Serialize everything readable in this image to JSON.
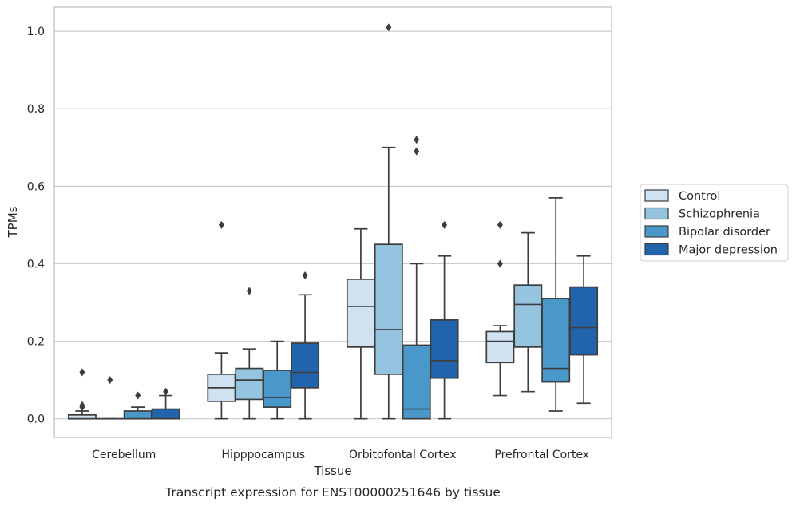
{
  "chart_data": {
    "type": "box",
    "xlabel": "Tissue",
    "ylabel": "TPMs",
    "caption": "Transcript expression for ENST00000251646 by tissue",
    "ylim": [
      -0.048,
      1.062
    ],
    "yticks": [
      0.0,
      0.2,
      0.4,
      0.6,
      0.8,
      1.0
    ],
    "ytick_labels": [
      "0.0",
      "0.2",
      "0.4",
      "0.6",
      "0.8",
      "1.0"
    ],
    "grid": true,
    "legend_position": "right",
    "categories": [
      "Cerebellum",
      "Hipppocampus",
      "Orbitofontal Cortex",
      "Prefrontal Cortex"
    ],
    "series": [
      {
        "name": "Control",
        "color": "#d0e1f2",
        "boxes": [
          {
            "whislo": 0.0,
            "q1": 0.0,
            "med": 0.0,
            "q3": 0.01,
            "whishi": 0.02,
            "fliers": [
              0.03,
              0.12,
              0.035
            ]
          },
          {
            "whislo": 0.0,
            "q1": 0.045,
            "med": 0.08,
            "q3": 0.115,
            "whishi": 0.17,
            "fliers": [
              0.5
            ]
          },
          {
            "whislo": 0.0,
            "q1": 0.185,
            "med": 0.29,
            "q3": 0.36,
            "whishi": 0.49,
            "fliers": []
          },
          {
            "whislo": 0.06,
            "q1": 0.145,
            "med": 0.2,
            "q3": 0.225,
            "whishi": 0.24,
            "fliers": [
              0.4,
              0.5
            ]
          }
        ]
      },
      {
        "name": "Schizophrenia",
        "color": "#94c4df",
        "boxes": [
          {
            "whislo": 0.0,
            "q1": 0.0,
            "med": 0.0,
            "q3": 0.0,
            "whishi": 0.0,
            "fliers": [
              0.1
            ]
          },
          {
            "whislo": 0.0,
            "q1": 0.05,
            "med": 0.1,
            "q3": 0.13,
            "whishi": 0.18,
            "fliers": [
              0.33
            ]
          },
          {
            "whislo": 0.0,
            "q1": 0.115,
            "med": 0.23,
            "q3": 0.45,
            "whishi": 0.7,
            "fliers": [
              1.01
            ]
          },
          {
            "whislo": 0.07,
            "q1": 0.185,
            "med": 0.295,
            "q3": 0.345,
            "whishi": 0.48,
            "fliers": []
          }
        ]
      },
      {
        "name": "Bipolar disorder",
        "color": "#4a98c9",
        "boxes": [
          {
            "whislo": 0.0,
            "q1": 0.0,
            "med": 0.0,
            "q3": 0.02,
            "whishi": 0.03,
            "fliers": [
              0.06
            ]
          },
          {
            "whislo": 0.0,
            "q1": 0.03,
            "med": 0.055,
            "q3": 0.125,
            "whishi": 0.2,
            "fliers": []
          },
          {
            "whislo": 0.0,
            "q1": 0.0,
            "med": 0.025,
            "q3": 0.19,
            "whishi": 0.4,
            "fliers": [
              0.69,
              0.72
            ]
          },
          {
            "whislo": 0.02,
            "q1": 0.095,
            "med": 0.13,
            "q3": 0.31,
            "whishi": 0.57,
            "fliers": []
          }
        ]
      },
      {
        "name": "Major depression",
        "color": "#2164ab",
        "boxes": [
          {
            "whislo": 0.0,
            "q1": 0.0,
            "med": 0.0,
            "q3": 0.025,
            "whishi": 0.06,
            "fliers": [
              0.07
            ]
          },
          {
            "whislo": 0.0,
            "q1": 0.08,
            "med": 0.12,
            "q3": 0.195,
            "whishi": 0.32,
            "fliers": [
              0.37
            ]
          },
          {
            "whislo": 0.0,
            "q1": 0.105,
            "med": 0.15,
            "q3": 0.255,
            "whishi": 0.42,
            "fliers": [
              0.5
            ]
          },
          {
            "whislo": 0.04,
            "q1": 0.165,
            "med": 0.235,
            "q3": 0.34,
            "whishi": 0.42,
            "fliers": []
          }
        ]
      }
    ]
  }
}
